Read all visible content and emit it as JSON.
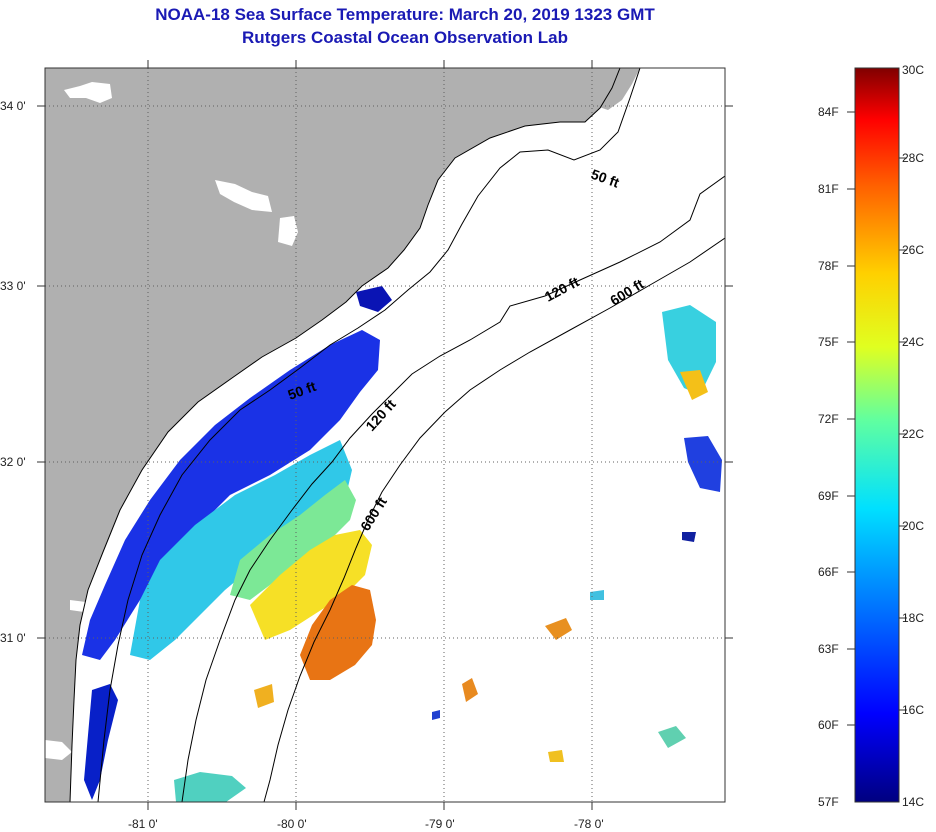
{
  "header": {
    "title": "NOAA-18 Sea Surface Temperature:  March 20, 2019 1323 GMT",
    "subtitle": "Rutgers Coastal Ocean Observation Lab"
  },
  "axes": {
    "lat_labels": [
      "34 0'",
      "33 0'",
      "32 0'",
      "31 0'"
    ],
    "lon_labels": [
      "-81 0'",
      "-80 0'",
      "-79 0'",
      "-78 0'"
    ]
  },
  "contours": {
    "c50_a": "50 ft",
    "c50_b": "50 ft",
    "c120_a": "120 ft",
    "c120_b": "120 ft",
    "c600_a": "600 ft",
    "c600_b": "600 ft"
  },
  "colorbar": {
    "fahrenheit": [
      "84F",
      "81F",
      "78F",
      "75F",
      "72F",
      "69F",
      "66F",
      "63F",
      "60F",
      "57F"
    ],
    "celsius": [
      "30C",
      "28C",
      "26C",
      "24C",
      "22C",
      "20C",
      "18C",
      "16C",
      "14C"
    ]
  },
  "colors": {
    "land": "#b0b0b0",
    "cold": "#1428e0",
    "warm": "#e87414",
    "title": "#1a1ab4"
  }
}
